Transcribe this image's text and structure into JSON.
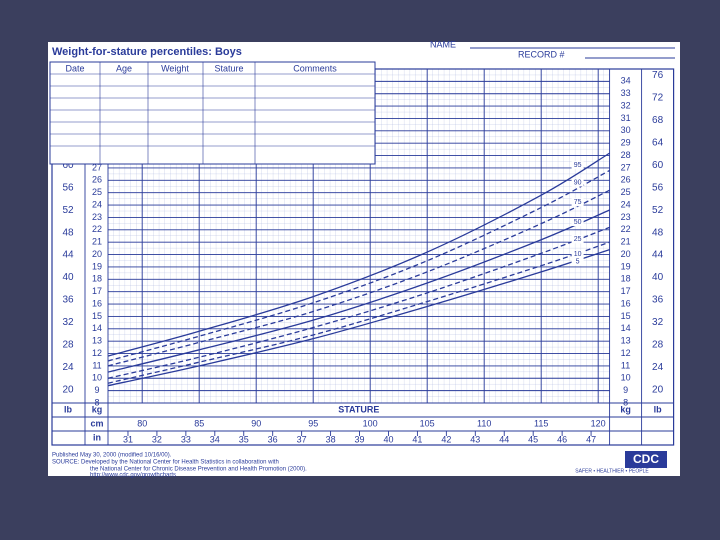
{
  "title": "Weight-for-stature percentiles: Boys",
  "name_label": "NAME",
  "record_label": "RECORD #",
  "table_headers": [
    "Date",
    "Age",
    "Weight",
    "Stature",
    "Comments"
  ],
  "footer": {
    "published": "Published May 30, 2000 (modified 10/16/00).",
    "source": "SOURCE: Developed by the National Center for Health Statistics in collaboration with",
    "source2": "the National Center for Chronic Disease Prevention and Health Promotion (2000).",
    "url": "http://www.cdc.gov/growthcharts",
    "logo": "CDC",
    "slogan": "SAFER • HEALTHIER • PEOPLE"
  },
  "chart_data": {
    "type": "line",
    "x_label": "STATURE",
    "x_unit": "cm",
    "x2_unit": "in",
    "y_unit": "kg",
    "y2_unit": "lb",
    "x": [
      77,
      85,
      95,
      105,
      115,
      121
    ],
    "xlim": [
      77,
      121
    ],
    "xticks": [
      80,
      85,
      90,
      95,
      100,
      105,
      110,
      115,
      120
    ],
    "x2lim": [
      30.31,
      47.64
    ],
    "x2ticks": [
      31,
      32,
      33,
      34,
      35,
      36,
      37,
      38,
      39,
      40,
      41,
      42,
      43,
      44,
      45,
      46,
      47
    ],
    "ylim": [
      8,
      35
    ],
    "yticks": [
      8,
      9,
      10,
      11,
      12,
      13,
      14,
      15,
      16,
      17,
      18,
      19,
      20,
      21,
      22,
      23,
      24,
      25,
      26,
      27,
      28,
      29,
      30,
      31,
      32,
      33,
      34
    ],
    "y2lim": [
      17.64,
      77.16
    ],
    "y2ticks": [
      20,
      24,
      28,
      32,
      36,
      40,
      44,
      48,
      52,
      56,
      60,
      64,
      68,
      72,
      76
    ],
    "grid": true,
    "series": [
      {
        "name": "5",
        "color": "#2a3b9a",
        "values": [
          9.4,
          11.0,
          13.2,
          15.8,
          18.6,
          20.4
        ]
      },
      {
        "name": "10",
        "color": "#2a3b9a",
        "values": [
          9.6,
          11.3,
          13.5,
          16.2,
          19.1,
          21.0
        ]
      },
      {
        "name": "25",
        "color": "#2a3b9a",
        "values": [
          10.0,
          11.7,
          14.1,
          16.9,
          20.1,
          22.2
        ]
      },
      {
        "name": "50",
        "color": "#2a3b9a",
        "values": [
          10.5,
          12.3,
          14.7,
          17.7,
          21.2,
          23.6
        ]
      },
      {
        "name": "75",
        "color": "#2a3b9a",
        "values": [
          11.0,
          12.9,
          15.4,
          18.6,
          22.5,
          25.2
        ]
      },
      {
        "name": "90",
        "color": "#2a3b9a",
        "values": [
          11.4,
          13.4,
          16.1,
          19.5,
          23.8,
          26.8
        ]
      },
      {
        "name": "95",
        "color": "#2a3b9a",
        "values": [
          11.8,
          13.8,
          16.6,
          20.2,
          24.8,
          28.2
        ]
      }
    ]
  }
}
